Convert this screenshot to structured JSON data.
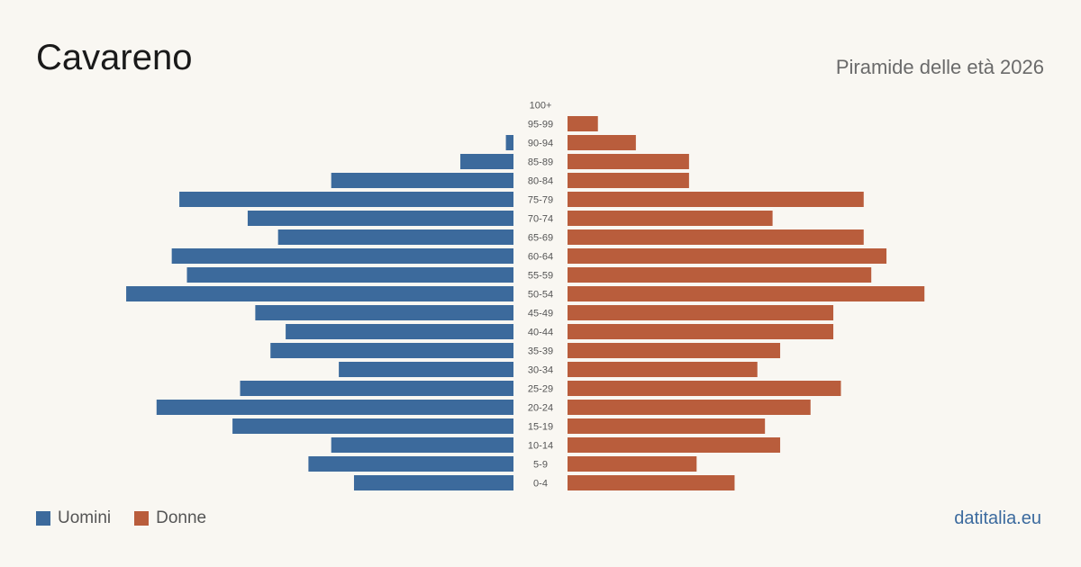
{
  "header": {
    "title": "Cavareno",
    "subtitle": "Piramide delle età 2026"
  },
  "legend": {
    "male_label": "Uomini",
    "female_label": "Donne"
  },
  "source": "datitalia.eu",
  "colors": {
    "male": "#3c6a9c",
    "female": "#b95d3c",
    "background": "#f9f7f2"
  },
  "chart_data": {
    "type": "bar",
    "orientation": "horizontal",
    "categories": [
      "100+",
      "95-99",
      "90-94",
      "85-89",
      "80-84",
      "75-79",
      "70-74",
      "65-69",
      "60-64",
      "55-59",
      "50-54",
      "45-49",
      "40-44",
      "35-39",
      "30-34",
      "25-29",
      "20-24",
      "15-19",
      "10-14",
      "5-9",
      "0-4"
    ],
    "series": [
      {
        "name": "Uomini",
        "values": [
          0,
          0,
          1,
          7,
          24,
          44,
          35,
          31,
          45,
          43,
          51,
          34,
          30,
          32,
          23,
          36,
          47,
          37,
          24,
          27,
          21
        ]
      },
      {
        "name": "Donne",
        "values": [
          0,
          4,
          9,
          16,
          16,
          39,
          27,
          39,
          42,
          40,
          47,
          35,
          35,
          28,
          25,
          36,
          32,
          26,
          28,
          17,
          22
        ]
      }
    ],
    "title": "Piramide delle età 2026",
    "xlabel": "",
    "ylabel": "",
    "legend_position": "bottom-left",
    "grid": false
  }
}
